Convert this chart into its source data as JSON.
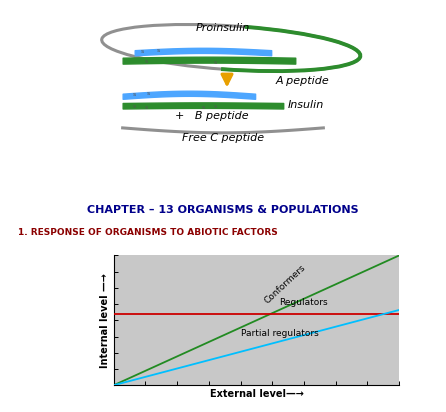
{
  "title_chapter": "CHAPTER – 13 ORGANISMS & POPULATIONS",
  "title_section": "1. RESPONSE OF ORGANISMS TO ABIOTIC FACTORS",
  "title_color": "#8B0000",
  "chapter_color": "#00008B",
  "bg_color": "#ffffff",
  "graph_bg": "#c8c8c8",
  "outer_bg": "#f5f5dc",
  "ylabel": "Internal level —→",
  "xlabel": "External level—→",
  "conformers_color": "#228B22",
  "regulators_color": "#cc0000",
  "partial_color": "#00bfff",
  "conformers_label": "Conformers",
  "regulators_label": "Regulators",
  "partial_label": "Partial regulators",
  "proinsulin_label": "Proinsulin",
  "a_peptide_label": "A peptide",
  "insulin_label": "Insulin",
  "b_peptide_label": "B peptide",
  "free_c_label": "Free C peptide",
  "arrow_color": "#E8A000",
  "ellipse_color": "#909090",
  "blue_band_color": "#4da6ff",
  "green_band_color": "#2d8c2d",
  "text_color": "#000000"
}
